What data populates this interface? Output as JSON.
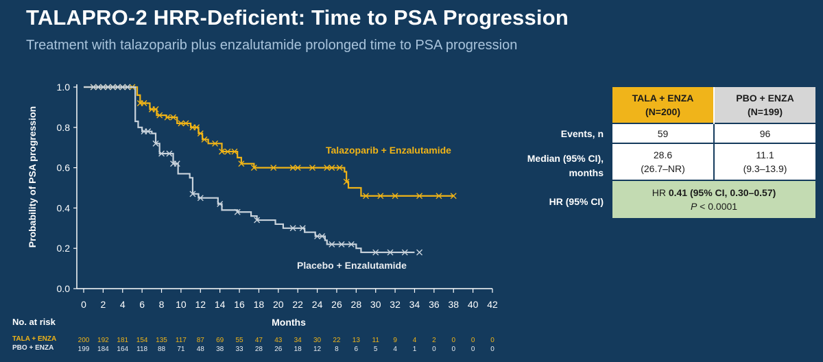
{
  "title": "TALAPRO-2 HRR-Deficient: Time to PSA Progression",
  "subtitle": "Treatment with talazoparib plus enzalutamide prolonged time to PSA progression",
  "chart_data": {
    "type": "line",
    "subtype": "kaplan-meier",
    "xlabel": "Months",
    "ylabel": "Probability of PSA progression",
    "xlim": [
      0,
      42
    ],
    "ylim": [
      0,
      1.0
    ],
    "x_ticks": [
      0,
      2,
      4,
      6,
      8,
      10,
      12,
      14,
      16,
      18,
      20,
      22,
      24,
      26,
      28,
      30,
      32,
      34,
      36,
      38,
      40,
      42
    ],
    "y_ticks": [
      0.0,
      0.2,
      0.4,
      0.6,
      0.8,
      1.0
    ],
    "y_tick_labels": [
      "0.0",
      "0.2",
      "0.4",
      "0.6",
      "0.8",
      "1.0"
    ],
    "grid": false,
    "colors": {
      "tala": "#f0b417",
      "pbo": "#c9d3dc",
      "axis": "#ffffff"
    },
    "series": [
      {
        "name": "Talazoparib + Enzalutamide",
        "steps": [
          [
            0,
            1.0
          ],
          [
            5.5,
            0.96
          ],
          [
            5.8,
            0.92
          ],
          [
            6.8,
            0.89
          ],
          [
            7.5,
            0.86
          ],
          [
            8.5,
            0.85
          ],
          [
            9.6,
            0.82
          ],
          [
            11.0,
            0.8
          ],
          [
            11.8,
            0.77
          ],
          [
            12.2,
            0.74
          ],
          [
            12.8,
            0.72
          ],
          [
            14.2,
            0.68
          ],
          [
            15.8,
            0.65
          ],
          [
            16.2,
            0.62
          ],
          [
            17.5,
            0.6
          ],
          [
            26.8,
            0.58
          ],
          [
            27.0,
            0.53
          ],
          [
            27.2,
            0.5
          ],
          [
            28.5,
            0.46
          ],
          [
            38.0,
            0.46
          ]
        ],
        "censor_x": [
          1.0,
          1.5,
          2.0,
          2.5,
          3.0,
          3.5,
          4.0,
          4.5,
          5.0,
          5.8,
          6.2,
          7.0,
          7.4,
          7.8,
          8.6,
          9.2,
          10.0,
          10.5,
          11.2,
          11.6,
          12.0,
          12.4,
          13.5,
          14.2,
          14.8,
          15.5,
          16.2,
          17.5,
          19.5,
          21.5,
          22.0,
          23.5,
          25.0,
          25.5,
          26.3,
          27.0,
          29.0,
          30.5,
          32.0,
          34.5,
          36.5,
          38.0
        ]
      },
      {
        "name": "Placebo + Enzalutamide",
        "steps": [
          [
            0,
            1.0
          ],
          [
            5.3,
            0.83
          ],
          [
            5.6,
            0.8
          ],
          [
            6.0,
            0.78
          ],
          [
            7.0,
            0.77
          ],
          [
            7.4,
            0.72
          ],
          [
            7.8,
            0.67
          ],
          [
            9.2,
            0.62
          ],
          [
            9.7,
            0.57
          ],
          [
            10.9,
            0.55
          ],
          [
            11.2,
            0.47
          ],
          [
            11.8,
            0.45
          ],
          [
            13.8,
            0.42
          ],
          [
            14.2,
            0.39
          ],
          [
            15.8,
            0.38
          ],
          [
            17.2,
            0.36
          ],
          [
            17.8,
            0.34
          ],
          [
            19.7,
            0.32
          ],
          [
            20.5,
            0.3
          ],
          [
            22.7,
            0.28
          ],
          [
            23.8,
            0.26
          ],
          [
            24.8,
            0.24
          ],
          [
            25.0,
            0.22
          ],
          [
            28.0,
            0.2
          ],
          [
            28.5,
            0.18
          ],
          [
            34.0,
            0.18
          ]
        ],
        "censor_x": [
          1.0,
          1.5,
          2.0,
          2.5,
          3.0,
          3.5,
          4.0,
          4.5,
          6.2,
          6.6,
          7.4,
          8.0,
          8.8,
          9.2,
          9.6,
          11.2,
          12.0,
          14.0,
          15.8,
          17.8,
          21.5,
          22.5,
          24.0,
          24.5,
          25.5,
          26.5,
          27.5,
          30.0,
          31.5,
          33.0,
          34.5
        ]
      }
    ],
    "number_at_risk": {
      "title": "No. at risk",
      "rows": [
        {
          "name": "TALA + ENZA",
          "values": [
            "200",
            "192",
            "181",
            "154",
            "135",
            "117",
            "87",
            "69",
            "55",
            "47",
            "43",
            "34",
            "30",
            "22",
            "13",
            "11",
            "9",
            "4",
            "2",
            "0",
            "0",
            "0"
          ]
        },
        {
          "name": "PBO + ENZA",
          "values": [
            "199",
            "184",
            "164",
            "118",
            "88",
            "71",
            "48",
            "38",
            "33",
            "28",
            "26",
            "18",
            "12",
            "8",
            "6",
            "5",
            "4",
            "1",
            "0",
            "0",
            "0",
            "0"
          ]
        }
      ]
    }
  },
  "summary_table": {
    "col1_header_line1": "TALA + ENZA",
    "col1_header_line2": "(N=200)",
    "col2_header_line1": "PBO + ENZA",
    "col2_header_line2": "(N=199)",
    "events_label": "Events, n",
    "events_tala": "59",
    "events_pbo": "96",
    "median_label_line1": "Median (95% CI),",
    "median_label_line2": "months",
    "median_tala": "28.6",
    "median_tala_ci": "(26.7–NR)",
    "median_pbo": "11.1",
    "median_pbo_ci": "(9.3–13.9)",
    "hr_label": "HR (95% CI)",
    "hr_prefix": "HR ",
    "hr_value": "0.41 (95% CI, 0.30–0.57)",
    "p_symbol": "P",
    "p_value": " < 0.0001",
    "colors": {
      "tala_header": "#f0b41a",
      "pbo_header": "#d6d6d6",
      "hr_bg": "#c3dbb2"
    }
  }
}
